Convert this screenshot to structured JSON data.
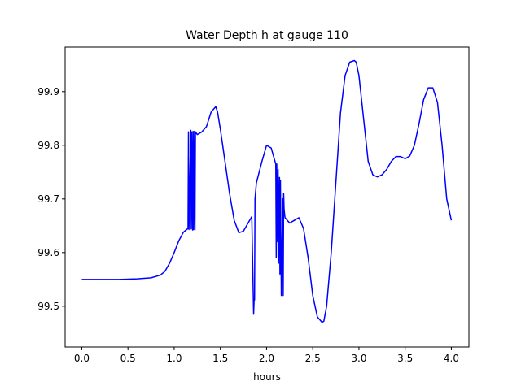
{
  "chart_data": {
    "type": "line",
    "title": "Water Depth h at gauge 110",
    "xlabel": "hours",
    "ylabel": "",
    "xlim": [
      -0.18,
      4.19
    ],
    "ylim": [
      99.424,
      99.983
    ],
    "xticks": [
      0.0,
      0.5,
      1.0,
      1.5,
      2.0,
      2.5,
      3.0,
      3.5,
      4.0
    ],
    "xtick_labels": [
      "0.0",
      "0.5",
      "1.0",
      "1.5",
      "2.0",
      "2.5",
      "3.0",
      "3.5",
      "4.0"
    ],
    "yticks": [
      99.5,
      99.6,
      99.7,
      99.8,
      99.9
    ],
    "ytick_labels": [
      "99.5",
      "99.6",
      "99.7",
      "99.8",
      "99.9"
    ],
    "grid": false,
    "legend": "none",
    "series_color": "#0000ff",
    "series": [
      {
        "x": [
          0.0,
          0.2,
          0.4,
          0.6,
          0.75,
          0.85,
          0.9,
          0.95,
          1.0,
          1.05,
          1.1,
          1.15,
          1.155,
          1.16,
          1.18,
          1.185,
          1.19,
          1.2,
          1.205,
          1.21,
          1.22,
          1.225,
          1.23,
          1.25,
          1.3,
          1.35,
          1.4,
          1.45,
          1.47,
          1.5,
          1.55,
          1.6,
          1.65,
          1.7,
          1.75,
          1.8,
          1.84,
          1.86,
          1.865,
          1.87,
          1.875,
          1.88,
          1.885,
          1.89,
          1.95,
          2.0,
          2.05,
          2.1,
          2.105,
          2.11,
          2.12,
          2.125,
          2.13,
          2.14,
          2.145,
          2.15,
          2.16,
          2.175,
          2.18,
          2.185,
          2.19,
          2.2,
          2.25,
          2.3,
          2.35,
          2.4,
          2.45,
          2.5,
          2.55,
          2.6,
          2.62,
          2.65,
          2.7,
          2.75,
          2.8,
          2.85,
          2.9,
          2.95,
          2.97,
          3.0,
          3.05,
          3.1,
          3.15,
          3.2,
          3.25,
          3.3,
          3.35,
          3.4,
          3.45,
          3.5,
          3.55,
          3.6,
          3.65,
          3.7,
          3.75,
          3.8,
          3.85,
          3.9,
          3.95,
          4.0
        ],
        "y": [
          99.55,
          99.55,
          99.55,
          99.551,
          99.553,
          99.558,
          99.565,
          99.58,
          99.6,
          99.622,
          99.638,
          99.645,
          99.825,
          99.643,
          99.828,
          99.644,
          99.825,
          99.642,
          99.826,
          99.643,
          99.826,
          99.642,
          99.825,
          99.82,
          99.825,
          99.835,
          99.862,
          99.872,
          99.862,
          99.83,
          99.77,
          99.71,
          99.66,
          99.637,
          99.64,
          99.655,
          99.667,
          99.485,
          99.51,
          99.512,
          99.7,
          99.71,
          99.72,
          99.73,
          99.77,
          99.8,
          99.795,
          99.765,
          99.59,
          99.765,
          99.62,
          99.755,
          99.58,
          99.74,
          99.56,
          99.735,
          99.52,
          99.7,
          99.52,
          99.71,
          99.68,
          99.665,
          99.655,
          99.66,
          99.665,
          99.645,
          99.59,
          99.52,
          99.48,
          99.47,
          99.472,
          99.5,
          99.6,
          99.73,
          99.86,
          99.93,
          99.955,
          99.958,
          99.955,
          99.93,
          99.85,
          99.77,
          99.745,
          99.741,
          99.745,
          99.755,
          99.77,
          99.779,
          99.779,
          99.775,
          99.78,
          99.8,
          99.84,
          99.885,
          99.907,
          99.907,
          99.88,
          99.8,
          99.7,
          99.66
        ]
      }
    ]
  }
}
